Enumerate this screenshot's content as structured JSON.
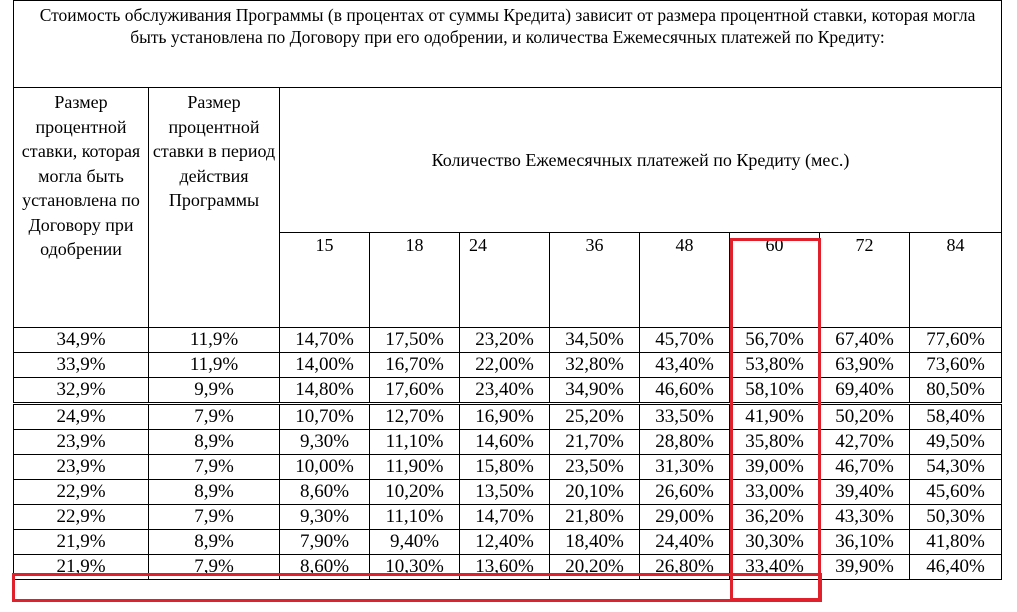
{
  "title": "Стоимость обслуживания Программы (в процентах от суммы Кредита) зависит от размера процентной ставки, которая могла быть установлена по Договору при его одобрении, и количества Ежемесячных платежей по Кредиту:",
  "header": {
    "col1": "Размер процентной ставки, которая могла быть установлена по Договору при одобрении",
    "col2": "Размер процентной ставки в период действия Программы",
    "payments": "Количество Ежемесячных платежей по Кредиту (мес.)",
    "months": [
      "15",
      "18",
      "24",
      "36",
      "48",
      "60",
      "72",
      "84"
    ]
  },
  "rows": [
    {
      "rate": "34,9%",
      "program": "11,9%",
      "values": [
        "14,70%",
        "17,50%",
        "23,20%",
        "34,50%",
        "45,70%",
        "56,70%",
        "67,40%",
        "77,60%"
      ]
    },
    {
      "rate": "33,9%",
      "program": "11,9%",
      "values": [
        "14,00%",
        "16,70%",
        "22,00%",
        "32,80%",
        "43,40%",
        "53,80%",
        "63,90%",
        "73,60%"
      ]
    },
    {
      "rate": "32,9%",
      "program": "9,9%",
      "values": [
        "14,80%",
        "17,60%",
        "23,40%",
        "34,90%",
        "46,60%",
        "58,10%",
        "69,40%",
        "80,50%"
      ]
    },
    {
      "rate": "24,9%",
      "program": "7,9%",
      "values": [
        "10,70%",
        "12,70%",
        "16,90%",
        "25,20%",
        "33,50%",
        "41,90%",
        "50,20%",
        "58,40%"
      ]
    },
    {
      "rate": "23,9%",
      "program": "8,9%",
      "values": [
        "9,30%",
        "11,10%",
        "14,60%",
        "21,70%",
        "28,80%",
        "35,80%",
        "42,70%",
        "49,50%"
      ]
    },
    {
      "rate": "23,9%",
      "program": "7,9%",
      "values": [
        "10,00%",
        "11,90%",
        "15,80%",
        "23,50%",
        "31,30%",
        "39,00%",
        "46,70%",
        "54,30%"
      ]
    },
    {
      "rate": "22,9%",
      "program": "8,9%",
      "values": [
        "8,60%",
        "10,20%",
        "13,50%",
        "20,10%",
        "26,60%",
        "33,00%",
        "39,40%",
        "45,60%"
      ]
    },
    {
      "rate": "22,9%",
      "program": "7,9%",
      "values": [
        "9,30%",
        "11,10%",
        "14,70%",
        "21,80%",
        "29,00%",
        "36,20%",
        "43,30%",
        "50,30%"
      ]
    },
    {
      "rate": "21,9%",
      "program": "8,9%",
      "values": [
        "7,90%",
        "9,40%",
        "12,40%",
        "18,40%",
        "24,40%",
        "30,30%",
        "36,10%",
        "41,80%"
      ]
    },
    {
      "rate": "21,9%",
      "program": "7,9%",
      "values": [
        "8,60%",
        "10,30%",
        "13,60%",
        "20,20%",
        "26,80%",
        "33,40%",
        "39,90%",
        "46,40%"
      ]
    }
  ],
  "highlight_color": "#e0202a"
}
